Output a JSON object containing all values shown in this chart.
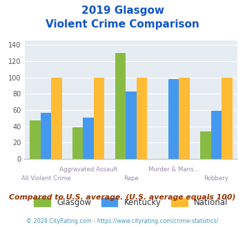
{
  "title_line1": "2019 Glasgow",
  "title_line2": "Violent Crime Comparison",
  "categories": [
    "All Violent Crime",
    "Aggravated Assault",
    "Rape",
    "Murder & Mans...",
    "Robbery"
  ],
  "glasgow": [
    47,
    39,
    130,
    0,
    34
  ],
  "kentucky": [
    57,
    51,
    83,
    98,
    59
  ],
  "national": [
    100,
    100,
    100,
    100,
    100
  ],
  "glasgow_color": "#88bb44",
  "kentucky_color": "#4499ee",
  "national_color": "#ffbb33",
  "ylim": [
    0,
    145
  ],
  "yticks": [
    0,
    20,
    40,
    60,
    80,
    100,
    120,
    140
  ],
  "bg_color": "#e5edf2",
  "title_color": "#1155cc",
  "footer_note": "Compared to U.S. average. (U.S. average equals 100)",
  "footer_note_color": "#993300",
  "copyright": "© 2024 CityRating.com - https://www.cityrating.com/crime-statistics/",
  "copyright_color": "#4499bb",
  "xlabel_color": "#9988aa",
  "bar_width": 0.25
}
